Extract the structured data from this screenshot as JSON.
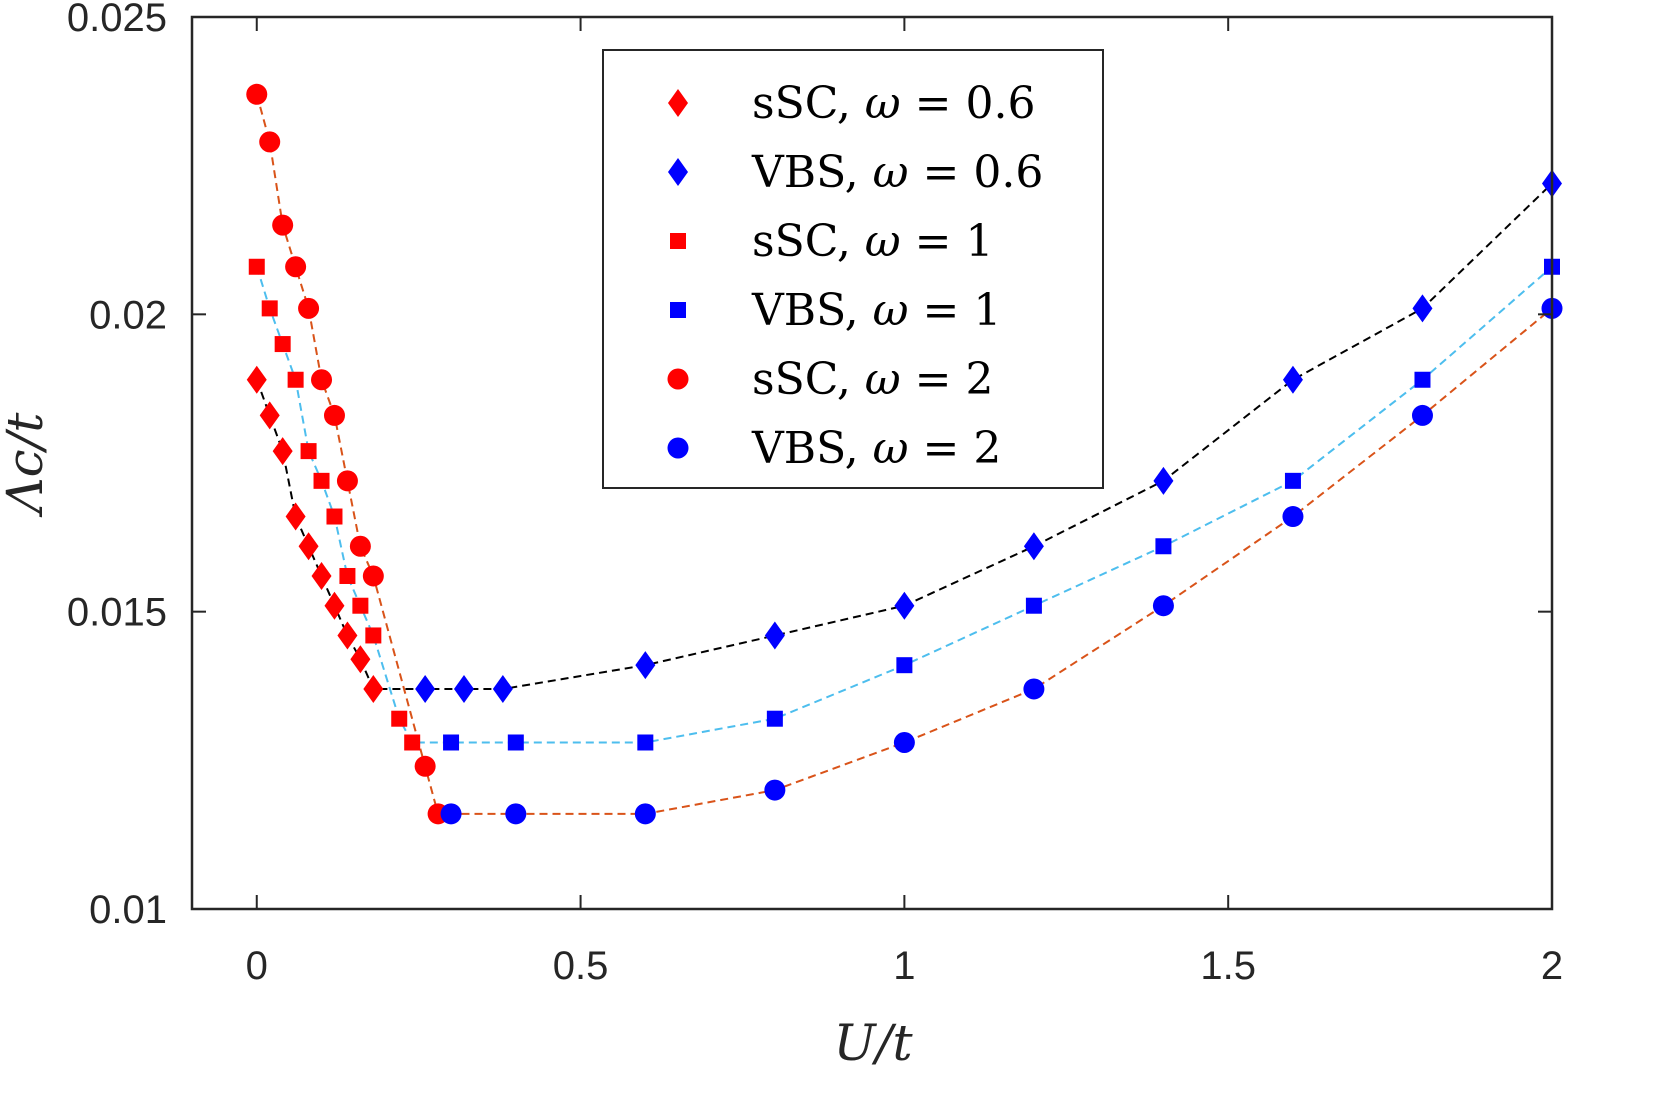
{
  "chart_data": {
    "type": "line",
    "title": "",
    "xlabel": "U/t",
    "ylabel": "Λc/t",
    "xlim": [
      -0.1,
      2
    ],
    "ylim": [
      0.01,
      0.025
    ],
    "xticks": [
      0,
      0.5,
      1,
      1.5,
      2
    ],
    "xtick_labels": [
      "0",
      "0.5",
      "1",
      "1.5",
      "2"
    ],
    "yticks": [
      0.01,
      0.015,
      0.02,
      0.025
    ],
    "ytick_labels": [
      "0.01",
      "0.015",
      "0.02",
      "0.025"
    ],
    "grid": false,
    "legend_position": "top-center",
    "series": [
      {
        "name": "sSC, ω = 0.6",
        "label_main": "sSC, ",
        "label_var": "ω",
        "label_rest": " = 0.6",
        "marker": "diamond",
        "color": "#ff0000",
        "x": [
          0,
          0.02,
          0.04,
          0.06,
          0.08,
          0.1,
          0.12,
          0.14,
          0.16,
          0.18
        ],
        "y": [
          0.0189,
          0.0183,
          0.0177,
          0.0166,
          0.0161,
          0.0156,
          0.0151,
          0.0146,
          0.0142,
          0.0137
        ]
      },
      {
        "name": "VBS, ω = 0.6",
        "label_main": "VBS, ",
        "label_var": "ω",
        "label_rest": " = 0.6",
        "marker": "diamond",
        "color": "#0000ff",
        "x": [
          0.26,
          0.32,
          0.38,
          0.6,
          0.8,
          1.0,
          1.2,
          1.4,
          1.6,
          1.8,
          2.0
        ],
        "y": [
          0.0137,
          0.0137,
          0.0137,
          0.0141,
          0.0146,
          0.0151,
          0.0161,
          0.0172,
          0.0189,
          0.0201,
          0.0222
        ]
      },
      {
        "name": "sSC, ω = 1",
        "label_main": "sSC, ",
        "label_var": "ω",
        "label_rest": " = 1",
        "marker": "square",
        "color": "#ff0000",
        "x": [
          0,
          0.02,
          0.04,
          0.06,
          0.08,
          0.1,
          0.12,
          0.14,
          0.16,
          0.18,
          0.22,
          0.24
        ],
        "y": [
          0.0208,
          0.0201,
          0.0195,
          0.0189,
          0.0177,
          0.0172,
          0.0166,
          0.0156,
          0.0151,
          0.0146,
          0.0132,
          0.0128
        ]
      },
      {
        "name": "VBS, ω = 1",
        "label_main": "VBS, ",
        "label_var": "ω",
        "label_rest": " = 1",
        "marker": "square",
        "color": "#0000ff",
        "x": [
          0.3,
          0.4,
          0.6,
          0.8,
          1.0,
          1.2,
          1.4,
          1.6,
          1.8,
          2.0
        ],
        "y": [
          0.0128,
          0.0128,
          0.0128,
          0.0132,
          0.0141,
          0.0151,
          0.0161,
          0.0172,
          0.0189,
          0.0208
        ]
      },
      {
        "name": "sSC, ω = 2",
        "label_main": "sSC, ",
        "label_var": "ω",
        "label_rest": " = 2",
        "marker": "circle",
        "color": "#ff0000",
        "x": [
          0,
          0.02,
          0.04,
          0.06,
          0.08,
          0.1,
          0.12,
          0.14,
          0.16,
          0.18,
          0.26,
          0.28
        ],
        "y": [
          0.0237,
          0.0229,
          0.0215,
          0.0208,
          0.0201,
          0.0189,
          0.0183,
          0.0172,
          0.0161,
          0.0156,
          0.0124,
          0.0116
        ]
      },
      {
        "name": "VBS, ω = 2",
        "label_main": "VBS, ",
        "label_var": "ω",
        "label_rest": " = 2",
        "marker": "circle",
        "color": "#0000ff",
        "x": [
          0.3,
          0.4,
          0.6,
          0.8,
          1.0,
          1.2,
          1.4,
          1.6,
          1.8,
          2.0
        ],
        "y": [
          0.0116,
          0.0116,
          0.0116,
          0.012,
          0.0128,
          0.0137,
          0.0151,
          0.0166,
          0.0183,
          0.0201
        ]
      }
    ],
    "connecting_lines": [
      {
        "name": "ω = 0.6",
        "color": "#000000",
        "x": [
          0,
          0.02,
          0.04,
          0.06,
          0.08,
          0.1,
          0.12,
          0.14,
          0.16,
          0.18,
          0.26,
          0.32,
          0.38,
          0.6,
          0.8,
          1.0,
          1.2,
          1.4,
          1.6,
          1.8,
          2.0
        ],
        "y": [
          0.0189,
          0.0183,
          0.0177,
          0.0166,
          0.0161,
          0.0156,
          0.0151,
          0.0146,
          0.0142,
          0.0137,
          0.0137,
          0.0137,
          0.0137,
          0.0141,
          0.0146,
          0.0151,
          0.0161,
          0.0172,
          0.0189,
          0.0201,
          0.0222
        ]
      },
      {
        "name": "ω = 1",
        "color": "#4dbeee",
        "x": [
          0,
          0.02,
          0.04,
          0.06,
          0.08,
          0.1,
          0.12,
          0.14,
          0.16,
          0.18,
          0.22,
          0.24,
          0.3,
          0.4,
          0.6,
          0.8,
          1.0,
          1.2,
          1.4,
          1.6,
          1.8,
          2.0
        ],
        "y": [
          0.0208,
          0.0201,
          0.0195,
          0.0189,
          0.0177,
          0.0172,
          0.0166,
          0.0156,
          0.0151,
          0.0146,
          0.0132,
          0.0128,
          0.0128,
          0.0128,
          0.0128,
          0.0132,
          0.0141,
          0.0151,
          0.0161,
          0.0172,
          0.0189,
          0.0208
        ]
      },
      {
        "name": "ω = 2",
        "color": "#d95319",
        "x": [
          0,
          0.02,
          0.04,
          0.06,
          0.08,
          0.1,
          0.12,
          0.14,
          0.16,
          0.18,
          0.26,
          0.28,
          0.3,
          0.4,
          0.6,
          0.8,
          1.0,
          1.2,
          1.4,
          1.6,
          1.8,
          2.0
        ],
        "y": [
          0.0237,
          0.0229,
          0.0215,
          0.0208,
          0.0201,
          0.0189,
          0.0183,
          0.0172,
          0.0161,
          0.0156,
          0.0124,
          0.0116,
          0.0116,
          0.0116,
          0.0116,
          0.012,
          0.0128,
          0.0137,
          0.0151,
          0.0166,
          0.0183,
          0.0201
        ]
      }
    ]
  }
}
